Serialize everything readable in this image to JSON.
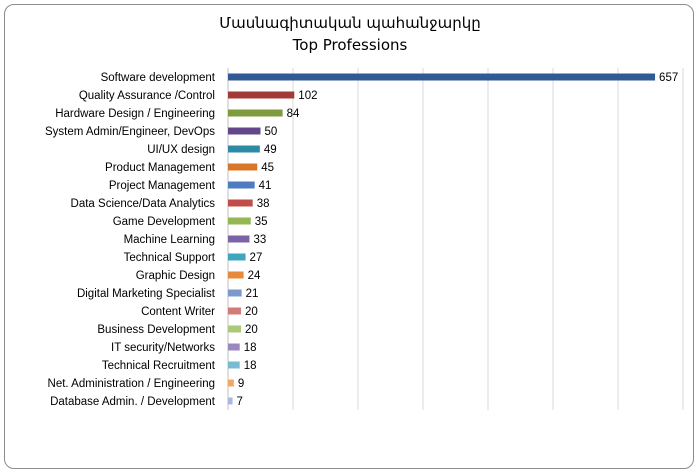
{
  "chart_data": {
    "type": "bar",
    "orientation": "horizontal",
    "title": "Մասնագիտական պահանջարկը",
    "subtitle": "Top Professions",
    "categories": [
      "Software development",
      "Quality Assurance /Control",
      "Hardware Design / Engineering",
      "System Admin/Engineer, DevOps",
      "UI/UX design",
      "Product Management",
      "Project Management",
      "Data Science/Data Analytics",
      "Game Development",
      "Machine Learning",
      "Technical Support",
      "Graphic Design",
      "Digital Marketing Specialist",
      "Content Writer",
      "Business Development",
      "IT security/Networks",
      "Technical Recruitment",
      "Net. Administration / Engineering",
      "Database Admin. / Development"
    ],
    "values": [
      657,
      102,
      84,
      50,
      49,
      45,
      41,
      38,
      35,
      33,
      27,
      24,
      21,
      20,
      20,
      18,
      18,
      9,
      7
    ],
    "colors": [
      "#2f5a96",
      "#a33a37",
      "#7f9b3e",
      "#63478a",
      "#2f8ba3",
      "#d8772a",
      "#4f7cc0",
      "#c04d4a",
      "#93b752",
      "#7b63a5",
      "#3fa6bf",
      "#e88a3c",
      "#7b98cf",
      "#d27b78",
      "#aac97a",
      "#9a88bf",
      "#77bcd0",
      "#f1a866",
      "#a7b9df"
    ],
    "xlim": [
      0,
      700
    ],
    "grid": true,
    "data_labels": true,
    "legend": "none"
  }
}
